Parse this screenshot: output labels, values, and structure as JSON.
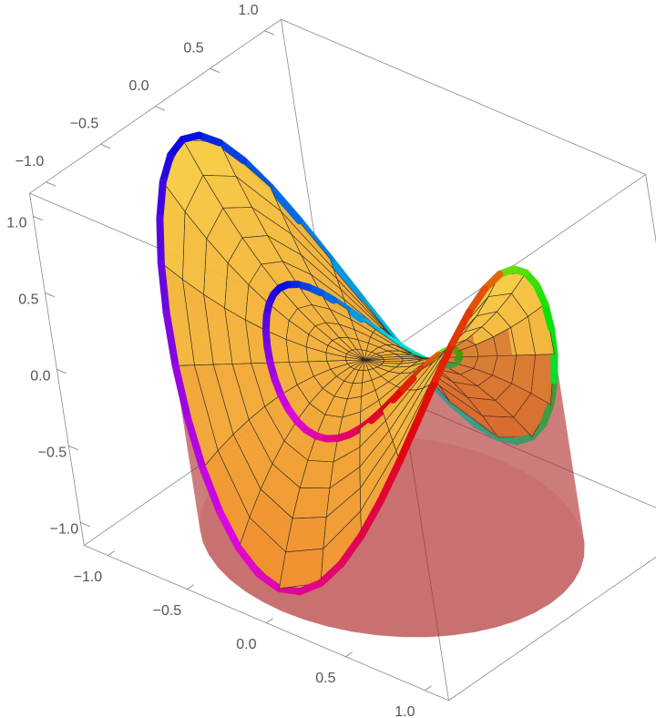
{
  "chart_data": {
    "type": "surface3d",
    "xlim": [
      -1.15,
      1.15
    ],
    "ylim": [
      -1.15,
      1.15
    ],
    "zlim": [
      -1.15,
      1.15
    ],
    "xticks": [
      {
        "value": -1,
        "label": "−1.0"
      },
      {
        "value": -0.5,
        "label": "−0.5"
      },
      {
        "value": 0,
        "label": "0.0"
      },
      {
        "value": 0.5,
        "label": "0.5"
      },
      {
        "value": 1,
        "label": "1.0"
      }
    ],
    "yticks": [
      {
        "value": -1,
        "label": "−1.0"
      },
      {
        "value": -0.5,
        "label": "−0.5"
      },
      {
        "value": 0,
        "label": "0.0"
      },
      {
        "value": 0.5,
        "label": "0.5"
      },
      {
        "value": 1,
        "label": "1.0"
      }
    ],
    "zticks": [
      {
        "value": -1,
        "label": "−1.0"
      },
      {
        "value": -0.5,
        "label": "−0.5"
      },
      {
        "value": 0,
        "label": "0.0"
      },
      {
        "value": 0.5,
        "label": "0.5"
      },
      {
        "value": 1,
        "label": "1.0"
      }
    ]
  }
}
